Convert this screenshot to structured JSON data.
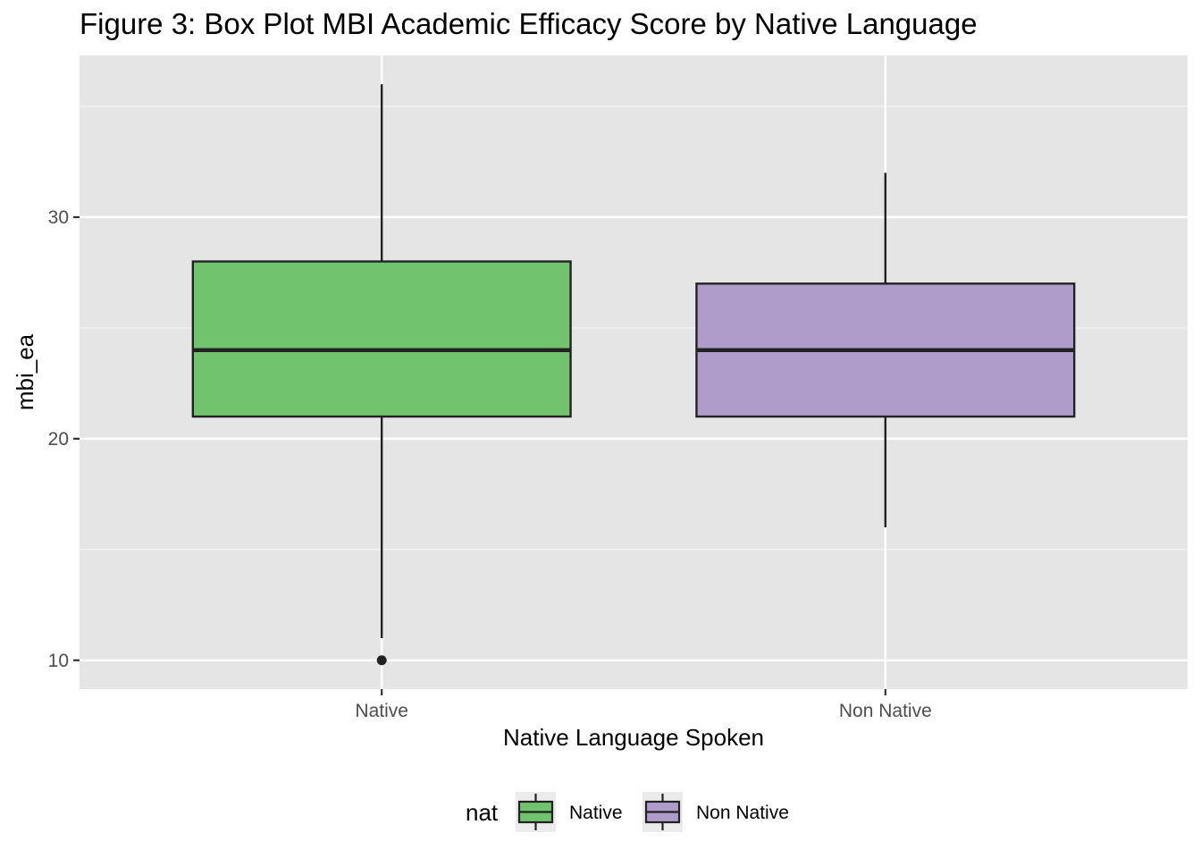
{
  "chart_data": {
    "type": "box",
    "title": "Figure 3: Box Plot MBI Academic Efficacy Score by Native Language",
    "xlabel": "Native Language Spoken",
    "ylabel": "mbi_ea",
    "categories": [
      "Native",
      "Non Native"
    ],
    "ylim": [
      8.7,
      37.3
    ],
    "y_ticks": [
      10,
      20,
      30
    ],
    "grid": true,
    "legend": {
      "title": "nat",
      "position": "bottom"
    },
    "boxes": [
      {
        "category": "Native",
        "whisker_low": 11,
        "q1": 21,
        "median": 24,
        "q3": 28,
        "whisker_high": 36,
        "outliers": [
          10
        ],
        "color": "#71c36e"
      },
      {
        "category": "Non Native",
        "whisker_low": 16,
        "q1": 21,
        "median": 24,
        "q3": 27,
        "whisker_high": 32,
        "outliers": [],
        "color": "#b09ccb"
      }
    ]
  }
}
